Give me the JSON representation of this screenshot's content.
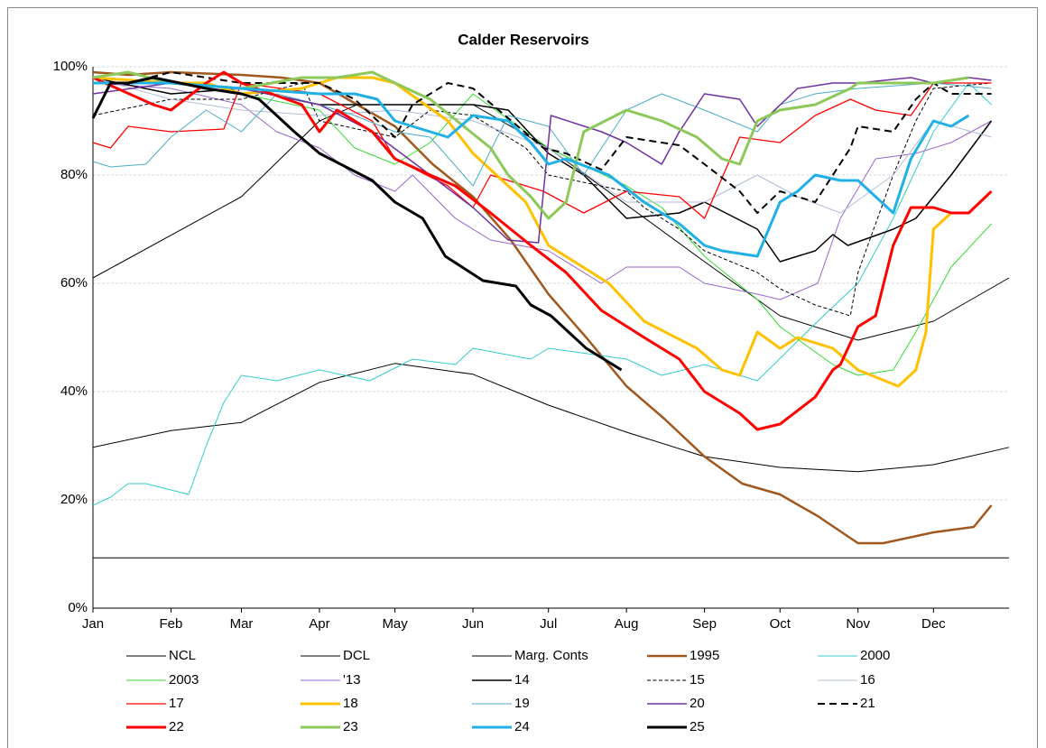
{
  "chart_data": {
    "type": "line",
    "title": "Calder Reservoirs",
    "xlim": [
      0,
      364
    ],
    "xticks": [
      {
        "value": 0,
        "label": "Jan"
      },
      {
        "value": 31,
        "label": "Feb"
      },
      {
        "value": 59,
        "label": "Mar"
      },
      {
        "value": 90,
        "label": "Apr"
      },
      {
        "value": 120,
        "label": "May"
      },
      {
        "value": 151,
        "label": "Jun"
      },
      {
        "value": 181,
        "label": "Jul"
      },
      {
        "value": 212,
        "label": "Aug"
      },
      {
        "value": 243,
        "label": "Sep"
      },
      {
        "value": 273,
        "label": "Oct"
      },
      {
        "value": 304,
        "label": "Nov"
      },
      {
        "value": 334,
        "label": "Dec"
      }
    ],
    "ylim": [
      0,
      100
    ],
    "yticks": [
      {
        "value": 0,
        "label": "0%"
      },
      {
        "value": 20,
        "label": "20%"
      },
      {
        "value": 40,
        "label": "40%"
      },
      {
        "value": 60,
        "label": "60%"
      },
      {
        "value": 80,
        "label": "80%"
      },
      {
        "value": 100,
        "label": "100%"
      }
    ],
    "grid": true,
    "legend": "bottom",
    "series": [
      {
        "name": "NCL",
        "color": "#000000",
        "width": 1,
        "dash": false,
        "x": [
          0,
          59,
          90,
          105,
          151,
          181,
          243,
          273,
          304,
          334,
          364
        ],
        "values": [
          61,
          76,
          90,
          93,
          93,
          85,
          64,
          54,
          49.5,
          53,
          61
        ]
      },
      {
        "name": "DCL",
        "color": "#000000",
        "width": 1,
        "dash": false,
        "x": [
          0,
          31,
          59,
          90,
          120,
          151,
          181,
          212,
          243,
          273,
          304,
          334,
          364
        ],
        "values": [
          29.7,
          32.8,
          34.3,
          41.7,
          45.2,
          43.2,
          37.5,
          32.5,
          28,
          26,
          25.2,
          26.5,
          29.7
        ]
      },
      {
        "name": "Marg. Conts",
        "color": "#000000",
        "width": 1,
        "dash": false,
        "x": [
          0,
          364
        ],
        "values": [
          9.3,
          9.3
        ]
      },
      {
        "name": "1995",
        "color": "#a0581e",
        "width": 2.5,
        "dash": false,
        "x": [
          0,
          14,
          31,
          59,
          75,
          90,
          105,
          120,
          135,
          151,
          166,
          181,
          196,
          212,
          227,
          243,
          258,
          273,
          288,
          304,
          314,
          334,
          350,
          357
        ],
        "values": [
          99,
          98.5,
          99,
          98.5,
          98,
          97,
          93,
          89,
          82,
          76,
          68,
          58,
          50,
          41,
          35,
          28,
          23,
          21,
          17,
          12,
          12,
          14,
          15,
          19
        ]
      },
      {
        "name": "2000",
        "color": "#33cccc",
        "width": 1,
        "dash": false,
        "x": [
          0,
          7,
          14,
          21,
          38,
          45,
          52,
          59,
          73,
          90,
          110,
          127,
          144,
          151,
          174,
          181,
          212,
          226,
          243,
          264,
          288,
          304,
          318,
          334,
          348,
          357
        ],
        "values": [
          19,
          20.5,
          23,
          23,
          21,
          30,
          38,
          43,
          42,
          44,
          42,
          46,
          45,
          48,
          46,
          48,
          46,
          43,
          45,
          42,
          53,
          60,
          72,
          88,
          97,
          93
        ]
      },
      {
        "name": "2003",
        "color": "#33dd33",
        "width": 1,
        "dash": false,
        "x": [
          0,
          31,
          59,
          90,
          104,
          120,
          134,
          151,
          172,
          181,
          212,
          226,
          243,
          264,
          273,
          294,
          304,
          318,
          327,
          341,
          357
        ],
        "values": [
          98,
          97,
          95,
          92,
          85,
          82,
          86,
          95,
          88,
          85,
          78,
          74,
          65,
          57,
          52,
          45,
          43,
          44,
          51,
          63,
          71
        ]
      },
      {
        "name": "'13",
        "color": "#9966cc",
        "width": 1,
        "dash": false,
        "x": [
          0,
          31,
          59,
          73,
          90,
          104,
          120,
          127,
          144,
          158,
          181,
          202,
          212,
          233,
          243,
          264,
          273,
          288,
          297,
          311,
          327,
          341,
          357
        ],
        "values": [
          97,
          96,
          93,
          88,
          85,
          80,
          77,
          80,
          72,
          68,
          66,
          60,
          63,
          63,
          60,
          58,
          57,
          60,
          72,
          83,
          84,
          86,
          90
        ]
      },
      {
        "name": "14",
        "color": "#000000",
        "width": 1.5,
        "dash": false,
        "x": [
          0,
          31,
          59,
          90,
          113,
          151,
          165,
          181,
          195,
          212,
          233,
          243,
          264,
          273,
          287,
          294,
          300,
          318,
          327,
          341,
          357
        ],
        "values": [
          98,
          95,
          96,
          93,
          93,
          93,
          92,
          84,
          80,
          72,
          73,
          75,
          70,
          64,
          66,
          69,
          67,
          70,
          72,
          80,
          90
        ]
      },
      {
        "name": "15",
        "color": "#000000",
        "width": 1,
        "dash": true,
        "x": [
          0,
          31,
          59,
          83,
          90,
          120,
          134,
          151,
          172,
          181,
          212,
          219,
          233,
          243,
          264,
          273,
          287,
          301,
          304,
          318,
          327,
          334,
          357
        ],
        "values": [
          91,
          94,
          94,
          97,
          90,
          87,
          92,
          91,
          85,
          80,
          77,
          74,
          70,
          66,
          62,
          59,
          56,
          54,
          62,
          80,
          90,
          96,
          97
        ]
      },
      {
        "name": "16",
        "color": "#b0bcd8",
        "width": 1,
        "dash": false,
        "x": [
          0,
          31,
          59,
          90,
          120,
          151,
          181,
          212,
          243,
          264,
          280,
          297,
          318,
          334,
          357
        ],
        "values": [
          98,
          94,
          92,
          91,
          92,
          90,
          85,
          75,
          75,
          80,
          76,
          73,
          80,
          90,
          87
        ]
      },
      {
        "name": "17",
        "color": "#ff0000",
        "width": 1.3,
        "dash": false,
        "x": [
          0,
          7,
          14,
          31,
          52,
          59,
          90,
          111,
          120,
          141,
          151,
          158,
          179,
          195,
          212,
          233,
          243,
          257,
          273,
          287,
          301,
          311,
          325,
          334,
          357
        ],
        "values": [
          86,
          85,
          89,
          88,
          88.5,
          97,
          95,
          90,
          83,
          78,
          74,
          80,
          77,
          73,
          77,
          76,
          72,
          87,
          86,
          91,
          94,
          92,
          91,
          97,
          97
        ]
      },
      {
        "name": "18",
        "color": "#ffc000",
        "width": 3,
        "dash": false,
        "x": [
          0,
          31,
          45,
          59,
          83,
          97,
          111,
          120,
          141,
          151,
          172,
          181,
          205,
          219,
          240,
          250,
          257,
          264,
          273,
          280,
          294,
          304,
          320,
          327,
          331,
          334,
          341
        ],
        "values": [
          98,
          97,
          97,
          95,
          96,
          98,
          98,
          97,
          90,
          84,
          75,
          67,
          60,
          53,
          48,
          44,
          43,
          51,
          48,
          50,
          48,
          44,
          41,
          44,
          51,
          70,
          73
        ]
      },
      {
        "name": "19",
        "color": "#4bacc6",
        "width": 1,
        "dash": false,
        "x": [
          0,
          7,
          21,
          31,
          45,
          59,
          73,
          90,
          104,
          120,
          134,
          151,
          165,
          181,
          195,
          212,
          226,
          243,
          264,
          273,
          287,
          304,
          334,
          357
        ],
        "values": [
          82.5,
          81.5,
          82,
          87,
          92,
          88,
          95,
          93,
          91,
          88,
          87,
          78,
          91,
          89,
          80,
          92,
          95,
          92,
          88,
          93,
          95,
          96,
          97,
          96
        ]
      },
      {
        "name": "20",
        "color": "#7030a0",
        "width": 1.5,
        "dash": false,
        "x": [
          0,
          31,
          59,
          90,
          111,
          134,
          151,
          165,
          177,
          182,
          202,
          212,
          226,
          233,
          243,
          257,
          264,
          280,
          294,
          304,
          325,
          334,
          348,
          357
        ],
        "values": [
          95,
          97,
          96,
          93,
          88,
          80,
          74,
          68,
          67.5,
          91,
          88,
          86,
          82,
          88,
          95,
          94,
          89,
          96,
          97,
          97,
          98,
          97,
          98,
          97.5
        ]
      },
      {
        "name": "21",
        "color": "#000000",
        "width": 2,
        "dash": true,
        "x": [
          0,
          14,
          31,
          59,
          90,
          104,
          120,
          127,
          141,
          151,
          179,
          188,
          202,
          212,
          233,
          243,
          257,
          264,
          273,
          287,
          301,
          304,
          318,
          327,
          334,
          341,
          357
        ],
        "values": [
          97,
          97,
          99,
          97,
          97,
          94,
          87,
          93,
          97,
          96,
          85,
          84,
          81,
          87,
          85.5,
          82,
          77,
          73,
          77,
          75,
          85,
          89,
          88,
          94,
          97,
          95,
          95
        ]
      },
      {
        "name": "22",
        "color": "#ff0000",
        "width": 3,
        "dash": false,
        "x": [
          0,
          24,
          31,
          45,
          52,
          59,
          83,
          90,
          97,
          111,
          120,
          134,
          144,
          158,
          174,
          188,
          202,
          219,
          233,
          243,
          257,
          264,
          273,
          287,
          294,
          297,
          304,
          311,
          318,
          325,
          334,
          341,
          348,
          357
        ],
        "values": [
          98,
          93,
          92,
          97,
          99,
          97,
          93,
          88,
          92,
          88,
          83,
          80,
          78,
          73,
          67,
          62,
          55,
          50,
          46,
          40,
          36,
          33,
          34,
          39,
          44,
          45,
          52,
          54,
          67,
          74,
          74,
          73,
          73,
          77
        ]
      },
      {
        "name": "23",
        "color": "#8dc85a",
        "width": 3,
        "dash": false,
        "x": [
          0,
          14,
          31,
          59,
          83,
          97,
          111,
          120,
          134,
          158,
          165,
          174,
          181,
          188,
          195,
          212,
          226,
          240,
          250,
          257,
          264,
          273,
          287,
          301,
          304,
          325,
          334,
          348
        ],
        "values": [
          98,
          99,
          97,
          96,
          98,
          98,
          99,
          97,
          94,
          85,
          80,
          76,
          72,
          75,
          88,
          92,
          90,
          87,
          83,
          82,
          90,
          92,
          93,
          96,
          97,
          97,
          97,
          98
        ]
      },
      {
        "name": "24",
        "color": "#20b0e8",
        "width": 3,
        "dash": false,
        "x": [
          0,
          31,
          59,
          90,
          104,
          113,
          120,
          141,
          151,
          165,
          174,
          181,
          188,
          205,
          219,
          233,
          243,
          250,
          264,
          273,
          280,
          287,
          297,
          304,
          311,
          318,
          325,
          334,
          341,
          348
        ],
        "values": [
          97,
          97,
          96,
          95,
          95,
          94,
          90,
          87,
          91,
          90,
          86,
          82,
          83,
          80,
          75,
          71,
          67,
          66,
          65,
          75,
          77,
          80,
          79,
          79,
          76,
          73,
          83,
          90,
          89,
          91
        ]
      },
      {
        "name": "25",
        "color": "#000000",
        "width": 3,
        "dash": false,
        "x": [
          0,
          7,
          14,
          24,
          45,
          59,
          66,
          73,
          80,
          90,
          111,
          120,
          131,
          140,
          155,
          168,
          174,
          182,
          196,
          210
        ],
        "values": [
          90.5,
          97,
          97,
          98,
          96,
          95,
          94,
          91,
          88,
          84,
          79,
          75,
          72,
          65,
          60.5,
          59.5,
          56,
          54,
          48,
          44
        ]
      }
    ]
  }
}
